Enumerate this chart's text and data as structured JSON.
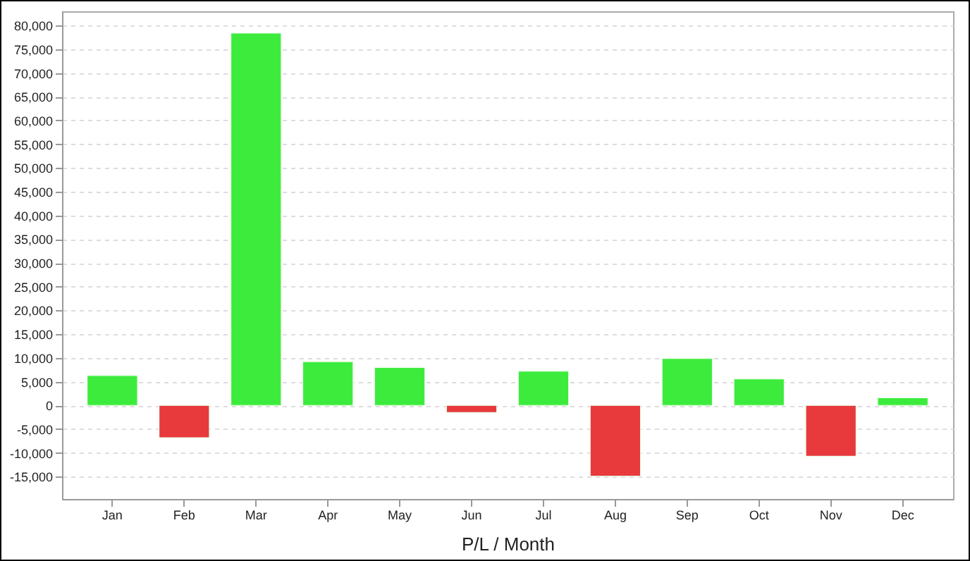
{
  "chart_data": {
    "type": "bar",
    "xlabel": "P/L / Month",
    "categories": [
      "Jan",
      "Feb",
      "Mar",
      "Apr",
      "May",
      "Jun",
      "Jul",
      "Aug",
      "Sep",
      "Oct",
      "Nov",
      "Dec"
    ],
    "values": [
      6300,
      -6800,
      78400,
      9200,
      8000,
      -1500,
      7200,
      -14900,
      9900,
      5600,
      -10700,
      1600
    ],
    "colors": [
      "#3deb3d",
      "#e8393d",
      "#3deb3d",
      "#3deb3d",
      "#3deb3d",
      "#e8393d",
      "#3deb3d",
      "#e8393d",
      "#3deb3d",
      "#3deb3d",
      "#e8393d",
      "#3deb3d"
    ],
    "ylim": [
      -19700,
      83000
    ],
    "yticks": [
      {
        "value": -15000,
        "label": "-15,000"
      },
      {
        "value": -10000,
        "label": "-10,000"
      },
      {
        "value": -5000,
        "label": "-5,000"
      },
      0,
      {
        "value": 5000,
        "label": "5,000"
      },
      {
        "value": 10000,
        "label": "10,000"
      },
      {
        "value": 15000,
        "label": "15,000"
      },
      {
        "value": 20000,
        "label": "20,000"
      },
      {
        "value": 25000,
        "label": "25,000"
      },
      {
        "value": 30000,
        "label": "30,000"
      },
      {
        "value": 35000,
        "label": "35,000"
      },
      {
        "value": 40000,
        "label": "40,000"
      },
      {
        "value": 45000,
        "label": "45,000"
      },
      {
        "value": 50000,
        "label": "50,000"
      },
      {
        "value": 55000,
        "label": "55,000"
      },
      {
        "value": 60000,
        "label": "60,000"
      },
      {
        "value": 65000,
        "label": "65,000"
      },
      {
        "value": 70000,
        "label": "70,000"
      },
      {
        "value": 75000,
        "label": "75,000"
      },
      {
        "value": 80000,
        "label": "80,000"
      }
    ],
    "grid": "y"
  }
}
